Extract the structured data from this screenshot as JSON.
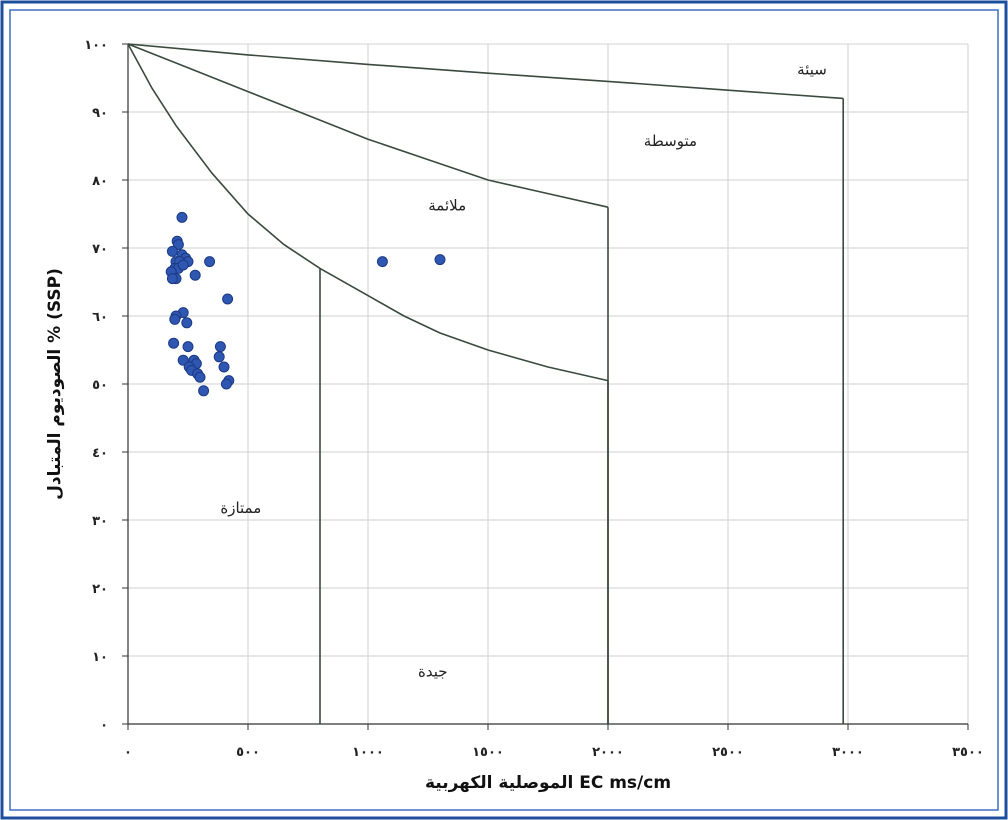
{
  "colors": {
    "frame_outer": "#1f4e9c",
    "frame_inner": "#3d6fc4",
    "grid": "#d0d0d0",
    "curve": "#3a4a3e",
    "point": "#2f56b0",
    "point_edge": "#1c3a86"
  },
  "chart_data": {
    "type": "scatter",
    "xlabel": "الموصلية الكهربية EC ms/cm",
    "ylabel": "الصوديوم المتبادل % (SSP)",
    "xlim": [
      0,
      3500
    ],
    "ylim": [
      0,
      100
    ],
    "grid": true,
    "x_ticks": [
      {
        "value": 0,
        "label": "٠"
      },
      {
        "value": 500,
        "label": "٥٠٠"
      },
      {
        "value": 1000,
        "label": "١٠٠٠"
      },
      {
        "value": 1500,
        "label": "١٥٠٠"
      },
      {
        "value": 2000,
        "label": "٢٠٠٠"
      },
      {
        "value": 2500,
        "label": "٢٥٠٠"
      },
      {
        "value": 3000,
        "label": "٣٠٠٠"
      },
      {
        "value": 3500,
        "label": "٣٥٠٠"
      }
    ],
    "y_ticks": [
      {
        "value": 0,
        "label": "٠"
      },
      {
        "value": 10,
        "label": "١٠"
      },
      {
        "value": 20,
        "label": "٢٠"
      },
      {
        "value": 30,
        "label": "٣٠"
      },
      {
        "value": 40,
        "label": "٤٠"
      },
      {
        "value": 50,
        "label": "٥٠"
      },
      {
        "value": 60,
        "label": "٦٠"
      },
      {
        "value": 70,
        "label": "٧٠"
      },
      {
        "value": 80,
        "label": "٨٠"
      },
      {
        "value": 90,
        "label": "٩٠"
      },
      {
        "value": 100,
        "label": "١٠٠"
      }
    ],
    "boundaries": [
      {
        "points": [
          [
            0,
            100
          ],
          [
            250,
            99.2
          ],
          [
            500,
            98.4
          ],
          [
            1000,
            97
          ],
          [
            1500,
            95.7
          ],
          [
            2000,
            94.5
          ],
          [
            2500,
            93.2
          ],
          [
            2980,
            92
          ]
        ]
      },
      {
        "points": [
          [
            2980,
            92
          ],
          [
            2980,
            0
          ]
        ]
      },
      {
        "points": [
          [
            0,
            100
          ],
          [
            250,
            96.5
          ],
          [
            500,
            93
          ],
          [
            750,
            89.5
          ],
          [
            1000,
            86
          ],
          [
            1250,
            83
          ],
          [
            1500,
            80
          ],
          [
            1750,
            78
          ],
          [
            2000,
            76
          ]
        ]
      },
      {
        "points": [
          [
            2000,
            76
          ],
          [
            2000,
            0
          ]
        ]
      },
      {
        "points": [
          [
            0,
            100
          ],
          [
            100,
            93.5
          ],
          [
            200,
            88
          ],
          [
            350,
            81
          ],
          [
            500,
            75
          ],
          [
            650,
            70.5
          ],
          [
            800,
            67
          ],
          [
            1000,
            63
          ],
          [
            1150,
            60
          ],
          [
            1300,
            57.5
          ],
          [
            1500,
            55
          ],
          [
            1750,
            52.5
          ],
          [
            2000,
            50.5
          ]
        ]
      },
      {
        "points": [
          [
            2000,
            50.5
          ],
          [
            2000,
            0
          ]
        ]
      },
      {
        "points": [
          [
            800,
            67
          ],
          [
            800,
            0
          ]
        ]
      }
    ],
    "zone_labels": [
      {
        "text": "سيئة",
        "x": 2850,
        "y": 95.5
      },
      {
        "text": "متوسطة",
        "x": 2260,
        "y": 85
      },
      {
        "text": "ملائمة",
        "x": 1330,
        "y": 75.5
      },
      {
        "text": "ممتازة",
        "x": 470,
        "y": 31
      },
      {
        "text": "جيدة",
        "x": 1270,
        "y": 7
      }
    ],
    "points": [
      [
        225,
        74.5
      ],
      [
        205,
        71
      ],
      [
        210,
        70.5
      ],
      [
        185,
        69.5
      ],
      [
        225,
        69
      ],
      [
        240,
        68.5
      ],
      [
        250,
        68
      ],
      [
        200,
        68
      ],
      [
        215,
        68
      ],
      [
        340,
        68
      ],
      [
        195,
        67
      ],
      [
        210,
        67
      ],
      [
        230,
        67.5
      ],
      [
        180,
        66.5
      ],
      [
        280,
        66
      ],
      [
        200,
        65.5
      ],
      [
        185,
        65.5
      ],
      [
        415,
        62.5
      ],
      [
        230,
        60.5
      ],
      [
        200,
        60
      ],
      [
        195,
        59.5
      ],
      [
        245,
        59
      ],
      [
        190,
        56
      ],
      [
        385,
        55.5
      ],
      [
        250,
        55.5
      ],
      [
        380,
        54
      ],
      [
        230,
        53.5
      ],
      [
        275,
        53.5
      ],
      [
        285,
        53
      ],
      [
        400,
        52.5
      ],
      [
        255,
        52.5
      ],
      [
        265,
        52
      ],
      [
        290,
        51.5
      ],
      [
        300,
        51
      ],
      [
        420,
        50.5
      ],
      [
        410,
        50
      ],
      [
        315,
        49
      ],
      [
        1060,
        68
      ],
      [
        1300,
        68.3
      ]
    ]
  }
}
